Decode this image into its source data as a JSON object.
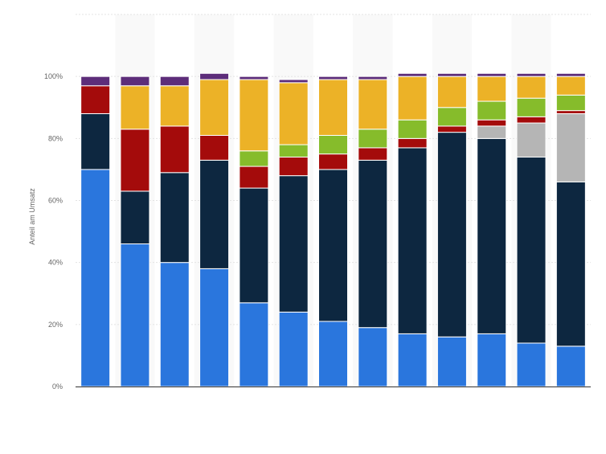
{
  "chart_data": {
    "type": "bar",
    "stacked": true,
    "ylabel": "Anteil am Umsatz",
    "ylim": [
      0,
      120
    ],
    "y_ticks": [
      0,
      20,
      40,
      60,
      80,
      100
    ],
    "y_tick_labels": [
      "0%",
      "20%",
      "40%",
      "60%",
      "80%",
      "100%"
    ],
    "grid": true,
    "legend": false,
    "bar_count": 13,
    "series": [
      {
        "color": "#2a76dd",
        "values": [
          70,
          46,
          40,
          38,
          27,
          24,
          21,
          19,
          17,
          16,
          17,
          14,
          13
        ]
      },
      {
        "color": "#0d2740",
        "values": [
          18,
          17,
          29,
          35,
          37,
          44,
          49,
          54,
          60,
          66,
          63,
          60,
          53
        ]
      },
      {
        "color": "#b5b5b5",
        "values": [
          0,
          0,
          0,
          0,
          0,
          0,
          0,
          0,
          0,
          0,
          4,
          11,
          22
        ]
      },
      {
        "color": "#a40b0b",
        "values": [
          9,
          20,
          15,
          8,
          7,
          6,
          5,
          4,
          3,
          2,
          2,
          2,
          1
        ]
      },
      {
        "color": "#86bc2b",
        "values": [
          0,
          0,
          0,
          0,
          5,
          4,
          6,
          6,
          6,
          6,
          6,
          6,
          5
        ]
      },
      {
        "color": "#ecb227",
        "values": [
          0,
          14,
          13,
          18,
          23,
          20,
          18,
          16,
          14,
          10,
          8,
          7,
          6
        ]
      },
      {
        "color": "#5d2d7a",
        "values": [
          3,
          3,
          3,
          2,
          1,
          1,
          1,
          1,
          1,
          1,
          1,
          1,
          1
        ]
      }
    ]
  }
}
